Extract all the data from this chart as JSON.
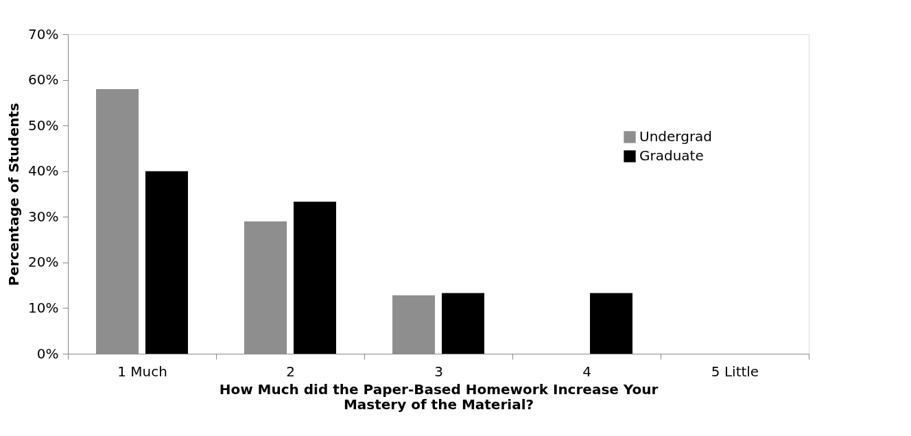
{
  "chart_data": {
    "type": "bar",
    "categories": [
      "1 Much",
      "2",
      "3",
      "4",
      "5 Little"
    ],
    "xlabel": "How Much did the Paper-Based Homework Increase Your Mastery of the Material?",
    "ylabel": "Percentage of Students",
    "series": [
      {
        "name": "Undergrad",
        "color": "#8e8e8e",
        "values": [
          58,
          29,
          12.8,
          0,
          0
        ]
      },
      {
        "name": "Graduate",
        "color": "#000000",
        "values": [
          40,
          33.3,
          13.3,
          13.3,
          0
        ]
      }
    ],
    "ylim": [
      0,
      70
    ],
    "yticks": [
      {
        "value": 0,
        "label": "0%"
      },
      {
        "value": 10,
        "label": "10%"
      },
      {
        "value": 20,
        "label": "20%"
      },
      {
        "value": 30,
        "label": "30%"
      },
      {
        "value": 40,
        "label": "40%"
      },
      {
        "value": 50,
        "label": "50%"
      },
      {
        "value": 60,
        "label": "60%"
      },
      {
        "value": 70,
        "label": "70%"
      }
    ],
    "legend": "top right",
    "grid": false
  }
}
